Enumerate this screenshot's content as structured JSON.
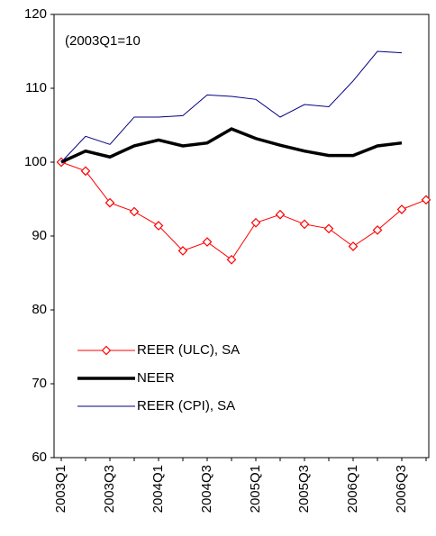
{
  "chart_data": {
    "type": "line",
    "annotation": "(2003Q1=10",
    "categories": [
      "2003Q1",
      null,
      "2003Q3",
      null,
      "2004Q1",
      null,
      "2004Q3",
      null,
      "2005Q1",
      null,
      "2005Q3",
      null,
      "2006Q1",
      null,
      "2006Q3",
      null
    ],
    "series": [
      {
        "name": "REER (ULC), SA",
        "color": "#ff0000",
        "marker": "diamond",
        "width": 1,
        "values": [
          100,
          98.8,
          94.5,
          93.3,
          91.4,
          88,
          89.2,
          86.8,
          91.8,
          92.9,
          91.6,
          91,
          88.6,
          90.8,
          93.6,
          94.9
        ]
      },
      {
        "name": "NEER",
        "color": "#000000",
        "width": 3.5,
        "values": [
          100,
          101.5,
          100.7,
          102.2,
          103,
          102.2,
          102.6,
          104.5,
          103.2,
          102.3,
          101.5,
          100.9,
          100.9,
          102.2,
          102.6,
          null
        ]
      },
      {
        "name": "REER (CPI), SA",
        "color": "#000080",
        "width": 1,
        "values": [
          100,
          103.5,
          102.4,
          106.1,
          106.1,
          106.3,
          109.1,
          108.9,
          108.5,
          106.1,
          107.8,
          107.5,
          111,
          115,
          114.8,
          null
        ]
      }
    ],
    "ylim": [
      60,
      120
    ],
    "yticks": [
      60,
      70,
      80,
      90,
      100,
      110,
      120
    ],
    "grid": false
  }
}
